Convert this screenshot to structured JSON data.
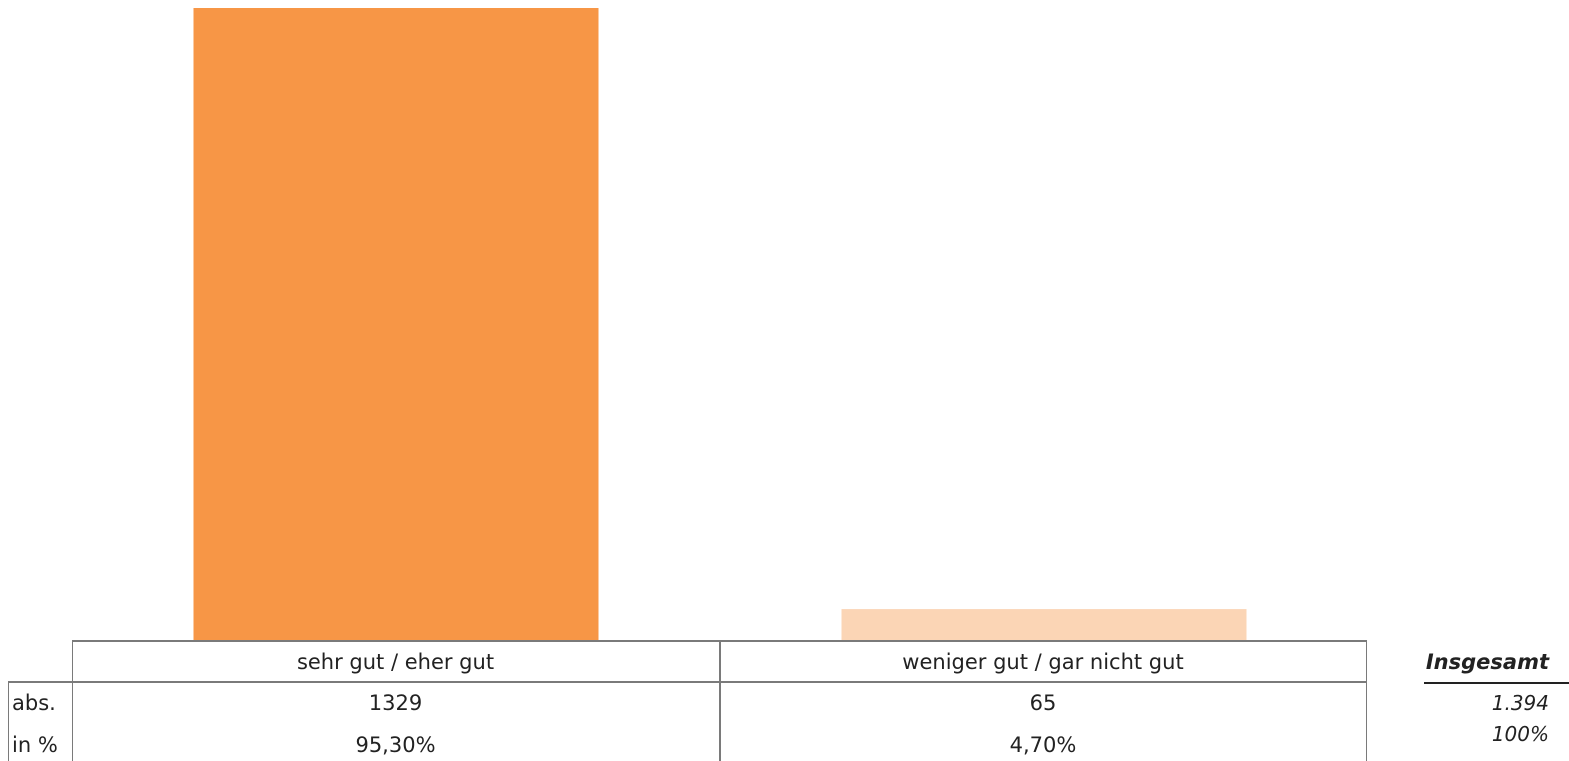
{
  "chart_data": {
    "type": "bar",
    "categories": [
      "sehr gut / eher gut",
      "weniger gut / gar nicht gut"
    ],
    "values": [
      1329,
      65
    ],
    "percent_labels": [
      "95,30%",
      "4,70%"
    ],
    "colors": [
      "#F79646",
      "#FBD5B5"
    ],
    "table": {
      "row_labels": [
        "abs.",
        "in %"
      ],
      "abs": [
        "1329",
        "65"
      ],
      "pct": [
        "95,30%",
        "4,70%"
      ]
    },
    "total": {
      "label": "Insgesamt",
      "abs": "1.394",
      "pct": "100%"
    }
  }
}
